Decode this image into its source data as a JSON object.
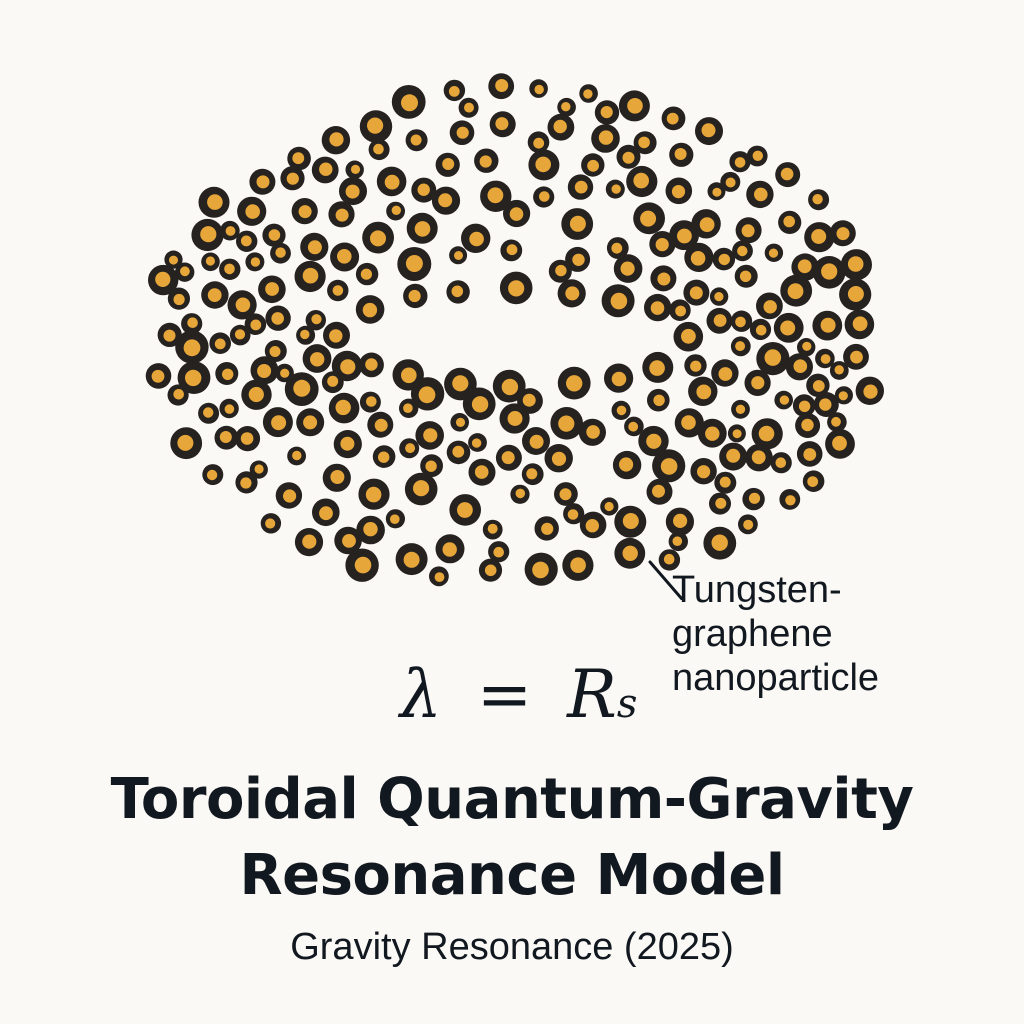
{
  "figure": {
    "particle_outer_color": "#26221f",
    "particle_core_color": "#e7a63a",
    "background_color": "#fbf9f5"
  },
  "callout": {
    "lines": [
      "Tungsten-",
      "graphene",
      "nanoparticle"
    ]
  },
  "equation": {
    "lhs": "λ",
    "operator": "=",
    "rhs": "R",
    "rhs_subscript": "s"
  },
  "title": {
    "line1": "Toroidal Quantum-Gravity",
    "line2": "Resonance Model"
  },
  "subtitle": "Gravity Resonance (2025)"
}
